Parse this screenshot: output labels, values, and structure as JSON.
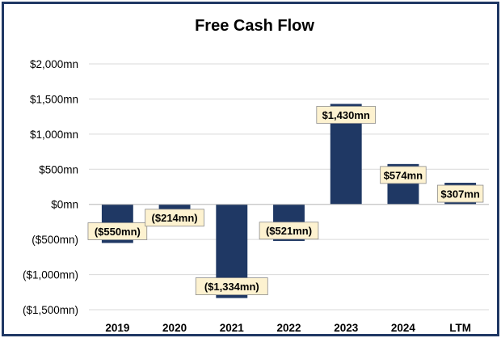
{
  "chart_data": {
    "type": "bar",
    "title": "Free Cash Flow",
    "categories": [
      "2019",
      "2020",
      "2021",
      "2022",
      "2023",
      "2024",
      "LTM"
    ],
    "series": [
      {
        "values": [
          -550,
          -214,
          -1334,
          -521,
          1430,
          574,
          307
        ]
      }
    ],
    "data_labels": [
      "($550mn)",
      "($214mn)",
      "($1,334mn)",
      "($521mn)",
      "$1,430mn",
      "$574mn",
      "$307mn"
    ],
    "yticks": [
      2000,
      1500,
      1000,
      500,
      0,
      -500,
      -1000,
      -1500
    ],
    "ytick_labels": [
      "$2,000mn",
      "$1,500mn",
      "$1,000mn",
      "$500mn",
      "$0mn",
      "($500mn)",
      "($1,000mn)",
      "($1,500mn)"
    ],
    "ylim": [
      -1500,
      2000
    ],
    "xlabel": "",
    "ylabel": "",
    "grid": true,
    "legend": false,
    "colors": {
      "bar": "#1f3864",
      "label_bg": "#fdf2d0",
      "grid": "#d9d9d9",
      "border": "#1f3864"
    }
  }
}
